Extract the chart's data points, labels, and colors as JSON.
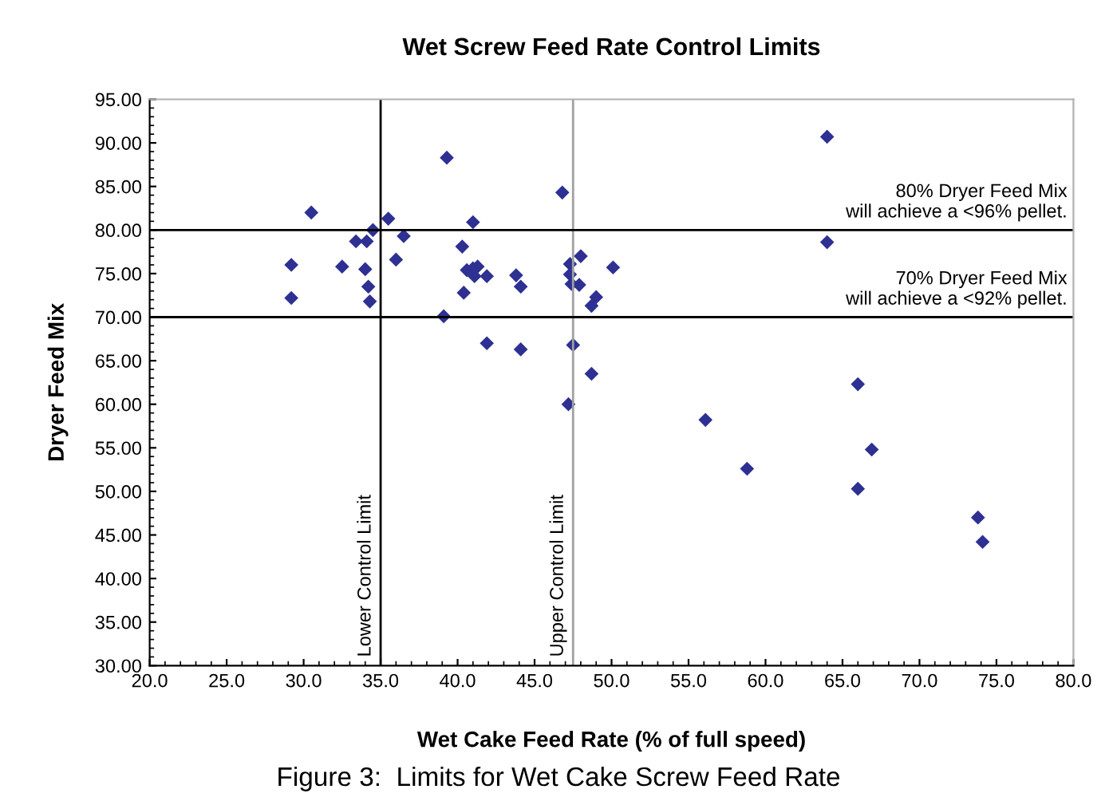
{
  "chart_data": {
    "type": "scatter",
    "title": "Wet Screw Feed Rate Control Limits",
    "xlabel": "Wet Cake Feed Rate (% of full speed)",
    "ylabel": "Dryer Feed Mix",
    "annotations": [
      "Figure 3:  Limits for Wet Cake Screw Feed Rate"
    ],
    "series": [
      {
        "color": "#2e3192",
        "x": [
          29.2,
          29.2,
          30.5,
          32.5,
          33.4,
          34.0,
          34.1,
          34.2,
          34.3,
          34.5,
          35.5,
          36.0,
          36.5,
          39.1,
          39.3,
          40.4,
          40.3,
          40.6,
          41.0,
          41.1,
          41.3,
          41.0,
          41.9,
          41.9,
          43.8,
          44.1,
          44.1,
          46.8,
          47.2,
          47.3,
          47.3,
          47.4,
          47.5,
          47.9,
          48.0,
          48.7,
          49.0,
          48.7,
          50.1,
          56.1,
          58.8,
          64.0,
          64.0,
          66.0,
          66.0,
          66.9,
          73.8,
          74.1
        ],
        "values": [
          76.0,
          72.2,
          82.0,
          75.8,
          78.7,
          75.5,
          78.7,
          73.5,
          71.8,
          80.0,
          81.3,
          76.6,
          79.3,
          70.1,
          88.3,
          72.8,
          78.1,
          75.4,
          80.9,
          74.7,
          75.8,
          75.6,
          74.7,
          67.0,
          74.8,
          73.5,
          66.3,
          84.3,
          60.0,
          76.1,
          74.9,
          73.8,
          66.8,
          73.7,
          77.0,
          71.3,
          72.3,
          63.5,
          75.7,
          58.2,
          52.6,
          90.7,
          78.6,
          62.3,
          50.3,
          54.8,
          47.0,
          44.2
        ]
      }
    ],
    "marker": "diamond",
    "xlim": [
      20,
      80
    ],
    "ylim": [
      30,
      95
    ],
    "xticks": [
      {
        "value": 20,
        "label": "20.0"
      },
      {
        "value": 25,
        "label": "25.0"
      },
      {
        "value": 30,
        "label": "30.0"
      },
      {
        "value": 35,
        "label": "35.0"
      },
      {
        "value": 40,
        "label": "40.0"
      },
      {
        "value": 45,
        "label": "45.0"
      },
      {
        "value": 50,
        "label": "50.0"
      },
      {
        "value": 55,
        "label": "55.0"
      },
      {
        "value": 60,
        "label": "60.0"
      },
      {
        "value": 65,
        "label": "65.0"
      },
      {
        "value": 70,
        "label": "70.0"
      },
      {
        "value": 75,
        "label": "75.0"
      },
      {
        "value": 80,
        "label": "80.0"
      }
    ],
    "yticks": [
      {
        "value": 30,
        "label": "30.00"
      },
      {
        "value": 35,
        "label": "35.00"
      },
      {
        "value": 40,
        "label": "40.00"
      },
      {
        "value": 45,
        "label": "45.00"
      },
      {
        "value": 50,
        "label": "50.00"
      },
      {
        "value": 55,
        "label": "55.00"
      },
      {
        "value": 60,
        "label": "60.00"
      },
      {
        "value": 65,
        "label": "65.00"
      },
      {
        "value": 70,
        "label": "70.00"
      },
      {
        "value": 75,
        "label": "75.00"
      },
      {
        "value": 80,
        "label": "80.00"
      },
      {
        "value": 85,
        "label": "85.00"
      },
      {
        "value": 90,
        "label": "90.00"
      },
      {
        "value": 95,
        "label": "95.00"
      }
    ],
    "ref_lines": [
      {
        "axis": "x",
        "value": 35,
        "label": "Lower Control Limit",
        "color": "#000000"
      },
      {
        "axis": "x",
        "value": 47.5,
        "label": "Upper Control Limit",
        "color": "#a0a0a0"
      },
      {
        "axis": "y",
        "value": 80,
        "label": "80% Dryer Feed Mix\nwill achieve a <96% pellet.",
        "color": "#000000"
      },
      {
        "axis": "y",
        "value": 70,
        "label": "70% Dryer Feed Mix\nwill achieve a <92% pellet.",
        "color": "#000000"
      }
    ],
    "grid": false
  }
}
